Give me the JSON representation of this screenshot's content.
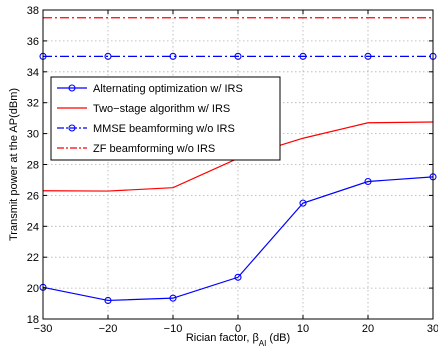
{
  "chart_data": {
    "type": "line",
    "xlabel_main": "Rician factor, β",
    "xlabel_sub": "AI",
    "xlabel_tail": " (dB)",
    "ylabel": "Transmit power at the AP(dBm)",
    "xlim": [
      -30,
      30
    ],
    "ylim": [
      18,
      38
    ],
    "xticks": [
      -30,
      -20,
      -10,
      0,
      10,
      20,
      30
    ],
    "xtick_labels": [
      "−30",
      "−20",
      "−10",
      "0",
      "10",
      "20",
      "30"
    ],
    "yticks": [
      18,
      20,
      22,
      24,
      26,
      28,
      30,
      32,
      34,
      36,
      38
    ],
    "ytick_labels": [
      "18",
      "20",
      "22",
      "24",
      "26",
      "28",
      "30",
      "32",
      "34",
      "36",
      "38"
    ],
    "grid": true,
    "legend_position": "top-left",
    "series": [
      {
        "name": "Alternating optimization w/ IRS",
        "color": "#0000ff",
        "style": "solid",
        "marker": "circle",
        "x": [
          -30,
          -20,
          -10,
          0,
          10,
          20,
          30
        ],
        "y": [
          20.05,
          19.2,
          19.35,
          20.7,
          25.5,
          26.9,
          27.2
        ]
      },
      {
        "name": "Two−stage algorithm w/ IRS",
        "color": "#ff0000",
        "style": "solid",
        "marker": "none",
        "x": [
          -30,
          -20,
          -10,
          0,
          10,
          20,
          30
        ],
        "y": [
          26.3,
          26.28,
          26.5,
          28.4,
          29.7,
          30.7,
          30.75
        ]
      },
      {
        "name": "MMSE beamforming w/o IRS",
        "color": "#0000ff",
        "style": "dashdot",
        "marker": "circle",
        "x": [
          -30,
          -20,
          -10,
          0,
          10,
          20,
          30
        ],
        "y": [
          35,
          35,
          35,
          35,
          35,
          35,
          35
        ]
      },
      {
        "name": "ZF beamforming w/o IRS",
        "color": "#ff0000",
        "style": "dashdot",
        "marker": "none",
        "x": [
          -30,
          -20,
          -10,
          0,
          10,
          20,
          30
        ],
        "y": [
          37.5,
          37.5,
          37.5,
          37.5,
          37.5,
          37.5,
          37.5
        ]
      }
    ]
  }
}
